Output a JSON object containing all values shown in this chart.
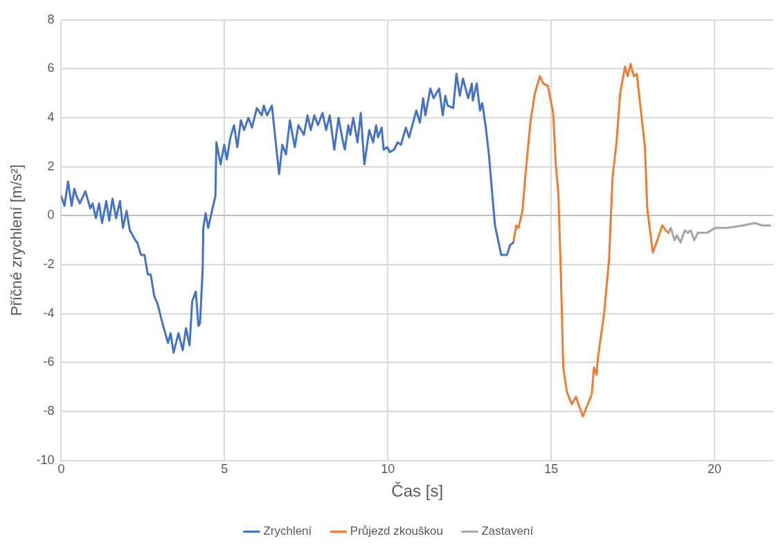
{
  "chart_data": {
    "type": "line",
    "xlabel": "Čas [s]",
    "ylabel": "Příčné zrychlení [m/s²]",
    "xlim": [
      0,
      21.8
    ],
    "xticks": [
      0,
      5,
      10,
      15,
      20
    ],
    "ylim": [
      -10,
      8
    ],
    "yticks": [
      -10,
      -8,
      -6,
      -4,
      -2,
      0,
      2,
      4,
      6,
      8
    ],
    "grid": true,
    "legend": "bottom",
    "marker": "none",
    "line_style": "solid",
    "series": [
      {
        "name": "Zrychlení",
        "color": "#4472c4",
        "x": [
          0,
          0.1,
          0.21,
          0.32,
          0.4,
          0.47,
          0.57,
          0.74,
          0.89,
          0.96,
          1.06,
          1.16,
          1.25,
          1.38,
          1.47,
          1.57,
          1.68,
          1.8,
          1.89,
          2.0,
          2.1,
          2.27,
          2.33,
          2.44,
          2.55,
          2.65,
          2.74,
          2.85,
          2.95,
          3.12,
          3.27,
          3.35,
          3.44,
          3.59,
          3.72,
          3.82,
          3.93,
          4.01,
          4.12,
          4.2,
          4.25,
          4.33,
          4.35,
          4.42,
          4.5,
          4.65,
          4.72,
          4.75,
          4.88,
          4.99,
          5.07,
          5.18,
          5.29,
          5.39,
          5.5,
          5.6,
          5.73,
          5.84,
          5.99,
          6.14,
          6.2,
          6.3,
          6.45,
          6.67,
          6.77,
          6.88,
          7.0,
          7.15,
          7.26,
          7.43,
          7.54,
          7.64,
          7.75,
          7.86,
          8.0,
          8.11,
          8.22,
          8.36,
          8.49,
          8.6,
          8.68,
          8.79,
          8.85,
          8.94,
          9.07,
          9.17,
          9.28,
          9.43,
          9.55,
          9.64,
          9.7,
          9.81,
          9.87,
          9.98,
          10.06,
          10.19,
          10.3,
          10.4,
          10.55,
          10.65,
          10.87,
          10.98,
          11.08,
          11.15,
          11.3,
          11.4,
          11.57,
          11.68,
          11.76,
          11.83,
          12.0,
          12.1,
          12.2,
          12.3,
          12.46,
          12.57,
          12.6,
          12.72,
          12.82,
          12.89,
          13.0,
          13.1,
          13.2,
          13.28,
          13.47,
          13.65,
          13.74,
          13.84
        ],
        "values": [
          0.8,
          0.4,
          1.4,
          0.4,
          1.1,
          0.8,
          0.5,
          1.0,
          0.3,
          0.5,
          -0.1,
          0.5,
          -0.3,
          0.6,
          -0.2,
          0.7,
          -0.1,
          0.6,
          -0.5,
          0.2,
          -0.6,
          -1.0,
          -1.1,
          -1.6,
          -1.6,
          -2.4,
          -2.4,
          -3.3,
          -3.6,
          -4.5,
          -5.2,
          -4.8,
          -5.6,
          -4.8,
          -5.5,
          -4.6,
          -5.3,
          -3.5,
          -3.1,
          -4.5,
          -4.4,
          -2.2,
          -0.5,
          0.1,
          -0.5,
          0.4,
          0.8,
          3.0,
          2.1,
          2.9,
          2.3,
          3.2,
          3.7,
          2.8,
          3.9,
          3.5,
          4.0,
          3.6,
          4.4,
          4.1,
          4.5,
          4.1,
          4.5,
          1.7,
          2.9,
          2.5,
          3.9,
          2.8,
          3.7,
          3.3,
          4.1,
          3.5,
          4.1,
          3.7,
          4.2,
          3.5,
          4.1,
          2.7,
          4.0,
          3.2,
          2.7,
          3.7,
          3.3,
          4.0,
          3.0,
          4.2,
          2.1,
          3.5,
          3.0,
          3.7,
          3.2,
          3.6,
          2.7,
          2.8,
          2.6,
          2.7,
          3.0,
          2.9,
          3.6,
          3.2,
          4.3,
          3.8,
          4.8,
          4.1,
          5.2,
          4.8,
          5.2,
          4.1,
          4.9,
          4.5,
          4.4,
          5.8,
          4.9,
          5.6,
          4.8,
          5.4,
          4.7,
          5.4,
          4.3,
          4.6,
          3.6,
          2.4,
          0.8,
          -0.4,
          -1.6,
          -1.6,
          -1.2,
          -1.1
        ]
      },
      {
        "name": "Průjezd zkouškou",
        "color": "#ed7d31",
        "x": [
          13.84,
          13.93,
          14.0,
          14.12,
          14.22,
          14.37,
          14.5,
          14.65,
          14.76,
          14.9,
          15.06,
          15.14,
          15.22,
          15.29,
          15.37,
          15.48,
          15.63,
          15.76,
          15.86,
          15.97,
          16.12,
          16.24,
          16.31,
          16.39,
          16.43,
          16.62,
          16.77,
          16.88,
          17.0,
          17.11,
          17.26,
          17.34,
          17.43,
          17.53,
          17.62,
          17.72,
          17.87,
          17.94,
          18.11,
          18.25,
          18.4,
          18.51,
          18.59
        ],
        "values": [
          -1.1,
          -0.4,
          -0.5,
          0.2,
          1.8,
          3.9,
          5.0,
          5.7,
          5.4,
          5.3,
          4.2,
          2.1,
          0.9,
          -2.1,
          -6.2,
          -7.2,
          -7.7,
          -7.4,
          -7.8,
          -8.2,
          -7.7,
          -7.3,
          -6.2,
          -6.5,
          -5.8,
          -4.0,
          -1.8,
          1.6,
          3.0,
          5.0,
          6.1,
          5.7,
          6.2,
          5.7,
          5.8,
          4.6,
          2.8,
          0.3,
          -1.5,
          -1.0,
          -0.4,
          -0.6,
          -0.7
        ]
      },
      {
        "name": "Zastavení",
        "color": "#a5a5a5",
        "x": [
          18.59,
          18.66,
          18.78,
          18.85,
          18.96,
          19.09,
          19.19,
          19.27,
          19.38,
          19.49,
          19.77,
          20.02,
          20.4,
          20.87,
          21.24,
          21.47,
          21.7
        ],
        "values": [
          -0.7,
          -0.5,
          -1.0,
          -0.8,
          -1.1,
          -0.6,
          -0.7,
          -0.6,
          -1.0,
          -0.7,
          -0.7,
          -0.5,
          -0.5,
          -0.4,
          -0.3,
          -0.4,
          -0.4
        ]
      }
    ]
  }
}
